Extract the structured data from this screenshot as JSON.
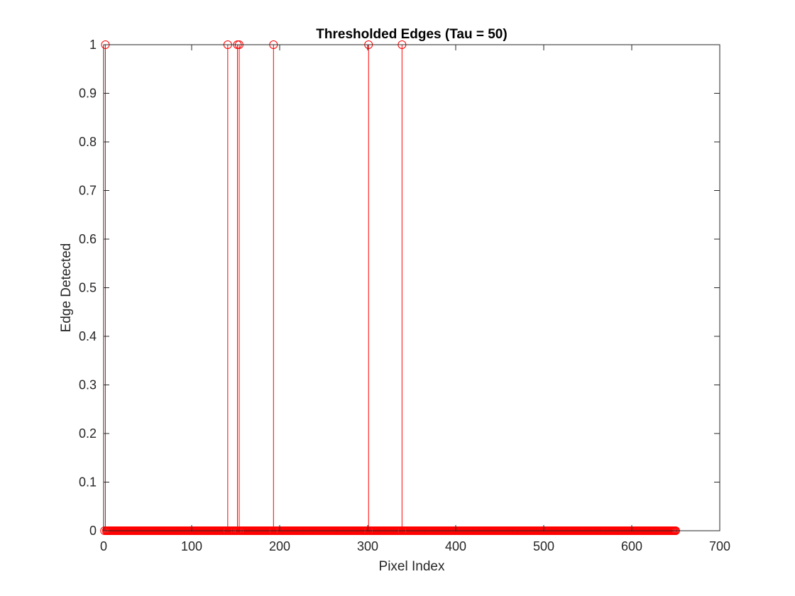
{
  "chart_data": {
    "type": "stem",
    "title": "Thresholded Edges (Tau = 50)",
    "xlabel": "Pixel Index",
    "ylabel": "Edge Detected",
    "xlim": [
      0,
      700
    ],
    "ylim": [
      0,
      1
    ],
    "xticks": [
      0,
      100,
      200,
      300,
      400,
      500,
      600,
      700
    ],
    "yticks": [
      0,
      0.1,
      0.2,
      0.3,
      0.4,
      0.5,
      0.6,
      0.7,
      0.8,
      0.9,
      1
    ],
    "xtick_labels": [
      "0",
      "100",
      "200",
      "300",
      "400",
      "500",
      "600",
      "700"
    ],
    "ytick_labels": [
      "0",
      "0.1",
      "0.2",
      "0.3",
      "0.4",
      "0.5",
      "0.6",
      "0.7",
      "0.8",
      "0.9",
      "1"
    ],
    "grid": false,
    "box": true,
    "marker": "circle-open",
    "color": "#ff0000",
    "x_start": 1,
    "x_end": 650,
    "baseline_value": 0,
    "edge_indices": [
      2,
      141,
      152,
      154,
      193,
      301,
      339
    ],
    "edge_value": 1
  }
}
